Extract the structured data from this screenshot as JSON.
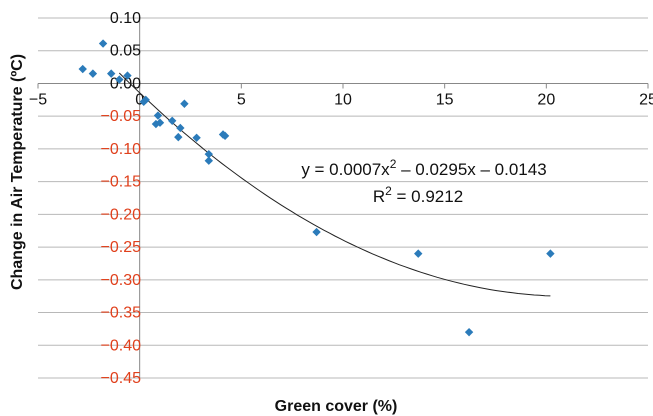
{
  "chart_data": {
    "type": "scatter",
    "xlabel": "Green cover (%)",
    "ylabel": "Change in Air Temperature (ºC)",
    "xlim": [
      -5,
      25
    ],
    "ylim": [
      -0.45,
      0.1
    ],
    "x_ticks": [
      "−5",
      "0",
      "5",
      "10",
      "15",
      "20",
      "25"
    ],
    "y_ticks": [
      {
        "value": 0.1,
        "label": "0.10"
      },
      {
        "value": 0.05,
        "label": "0.05"
      },
      {
        "value": 0.0,
        "label": "0.00"
      },
      {
        "value": -0.05,
        "label": "−0.05"
      },
      {
        "value": -0.1,
        "label": "−0.10"
      },
      {
        "value": -0.15,
        "label": "−0.15"
      },
      {
        "value": -0.2,
        "label": "−0.20"
      },
      {
        "value": -0.25,
        "label": "−0.25"
      },
      {
        "value": -0.3,
        "label": "−0.30"
      },
      {
        "value": -0.35,
        "label": "−0.35"
      },
      {
        "value": -0.4,
        "label": "−0.40"
      },
      {
        "value": -0.45,
        "label": "−0.45"
      }
    ],
    "grid": true,
    "points": [
      {
        "x": -2.8,
        "y": 0.022
      },
      {
        "x": -2.3,
        "y": 0.015
      },
      {
        "x": -1.8,
        "y": 0.061
      },
      {
        "x": -1.4,
        "y": 0.015
      },
      {
        "x": -1.0,
        "y": 0.006
      },
      {
        "x": -0.6,
        "y": 0.012
      },
      {
        "x": 0.2,
        "y": -0.028
      },
      {
        "x": 0.3,
        "y": -0.025
      },
      {
        "x": 0.8,
        "y": -0.062
      },
      {
        "x": 0.9,
        "y": -0.049
      },
      {
        "x": 1.0,
        "y": -0.06
      },
      {
        "x": 1.6,
        "y": -0.057
      },
      {
        "x": 1.9,
        "y": -0.082
      },
      {
        "x": 2.0,
        "y": -0.068
      },
      {
        "x": 2.2,
        "y": -0.031
      },
      {
        "x": 2.8,
        "y": -0.083
      },
      {
        "x": 3.4,
        "y": -0.108
      },
      {
        "x": 3.4,
        "y": -0.118
      },
      {
        "x": 4.1,
        "y": -0.078
      },
      {
        "x": 4.2,
        "y": -0.08
      },
      {
        "x": 8.7,
        "y": -0.227
      },
      {
        "x": 13.7,
        "y": -0.26
      },
      {
        "x": 16.2,
        "y": -0.38
      },
      {
        "x": 20.2,
        "y": -0.26
      }
    ],
    "trendline": {
      "type": "polynomial",
      "coefficients": {
        "a": 0.0007,
        "b": -0.0295,
        "c": -0.0143
      },
      "x_range": [
        -1.0,
        20.2
      ]
    },
    "annotation": {
      "equation_prefix": "y = 0.0007x",
      "equation_sup": "2",
      "equation_suffix": " – 0.0295x – 0.0143",
      "r2_prefix": "R",
      "r2_sup": "2",
      "r2_suffix": " = 0.9212"
    },
    "colors": {
      "marker": "#2b7bba",
      "negative_tick_label": "#e0401c",
      "positive_tick_label": "#111111",
      "gridline": "#b8b8b8",
      "trendline": "#222222",
      "axis": "#888888"
    }
  }
}
